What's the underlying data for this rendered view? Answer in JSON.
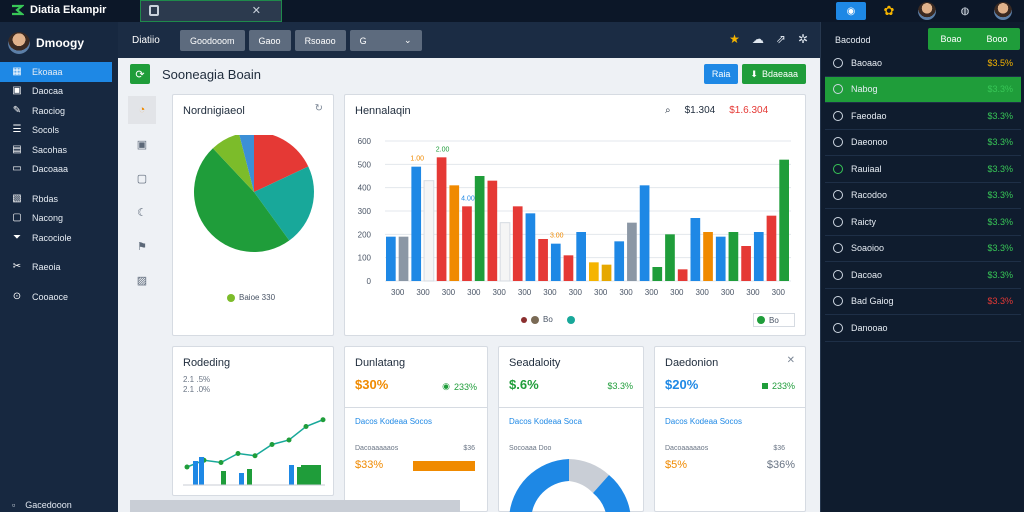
{
  "app": {
    "title": "Diatia Ekampir"
  },
  "window": {
    "tab_label": ""
  },
  "topbar": {
    "icons": [
      "notification-icon",
      "gear-icon",
      "avatar",
      "globe-icon",
      "avatar"
    ]
  },
  "profile": {
    "name": "Dmoogy"
  },
  "sidebar": {
    "items": [
      {
        "label": "Ekoaaa",
        "icon": "grid-icon",
        "active": true
      },
      {
        "label": "Daocaa",
        "icon": "folder-icon"
      },
      {
        "label": "Raociog",
        "icon": "wrench-icon"
      },
      {
        "label": "Socols",
        "icon": "list-icon"
      },
      {
        "label": "Sacohas",
        "icon": "table-icon"
      },
      {
        "label": "Dacoaaa",
        "icon": "monitor-icon"
      },
      {
        "label": "Rbdas",
        "icon": "tag-icon"
      },
      {
        "label": "Nacong",
        "icon": "note-icon"
      },
      {
        "label": "Racociole",
        "icon": "filter-icon"
      },
      {
        "label": "Raeoia",
        "icon": "tools-icon"
      },
      {
        "label": "Cooaoce",
        "icon": "settings-icon"
      }
    ],
    "footer": "Gacedooon"
  },
  "toolbar": {
    "title": "Diatiio",
    "tabs": [
      "Goodooom",
      "Gaoo",
      "Rsoaoo"
    ],
    "select_value": "G"
  },
  "page": {
    "title": "Sooneagia Boain",
    "btn_primary": "Raia",
    "btn_secondary": "Bdaeaaa"
  },
  "pie_card": {
    "title": "Nordnigiaeol",
    "legend": "Baioe 330"
  },
  "bar_card": {
    "title": "Hennalaqin",
    "summary": "$1.304",
    "summary_alt": "$1.6.304",
    "legend": [
      "Bo"
    ]
  },
  "chart_data": [
    {
      "type": "pie",
      "title": "Nordnigiaeol",
      "slices": [
        {
          "value": 18,
          "color": "#e53935"
        },
        {
          "value": 22,
          "color": "#18a89a"
        },
        {
          "value": 48,
          "color": "#1f9d3a"
        },
        {
          "value": 8,
          "color": "#7cbc2a"
        },
        {
          "value": 4,
          "color": "#3c8fd6"
        }
      ]
    },
    {
      "type": "bar",
      "title": "Hennalaqin",
      "yticks": [
        "0",
        "100",
        "200",
        "300",
        "400",
        "500",
        "600"
      ],
      "xlabels": [
        "300",
        "300",
        "300",
        "300",
        "300",
        "300",
        "300",
        "300",
        "300",
        "300",
        "300",
        "300",
        "300",
        "300",
        "300",
        "300"
      ],
      "ylim": [
        0,
        600
      ],
      "values": [
        [
          190,
          "#1e88e5"
        ],
        [
          190,
          "#8b97a5"
        ],
        [
          490,
          "#1e88e5"
        ],
        [
          430,
          "#f5f5f5"
        ],
        [
          530,
          "#e53935"
        ],
        [
          410,
          "#f08a00"
        ],
        [
          320,
          "#e53935"
        ],
        [
          450,
          "#1f9d3a"
        ],
        [
          430,
          "#e53935"
        ],
        [
          250,
          "#f5f5f5"
        ],
        [
          320,
          "#e53935"
        ],
        [
          290,
          "#1e88e5"
        ],
        [
          180,
          "#e53935"
        ],
        [
          160,
          "#1e88e5"
        ],
        [
          110,
          "#e53935"
        ],
        [
          210,
          "#1e88e5"
        ],
        [
          80,
          "#f5b400"
        ],
        [
          70,
          "#e6a800"
        ],
        [
          170,
          "#1e88e5"
        ],
        [
          250,
          "#8b97a5"
        ],
        [
          410,
          "#1e88e5"
        ],
        [
          60,
          "#1f9d3a"
        ],
        [
          200,
          "#1f9d3a"
        ],
        [
          50,
          "#e53935"
        ],
        [
          270,
          "#1e88e5"
        ],
        [
          210,
          "#f08a00"
        ],
        [
          190,
          "#1e88e5"
        ],
        [
          210,
          "#1f9d3a"
        ],
        [
          150,
          "#e53935"
        ],
        [
          210,
          "#1e88e5"
        ],
        [
          280,
          "#e53935"
        ],
        [
          520,
          "#1f9d3a"
        ]
      ],
      "annotations": [
        "1.00",
        "2.00",
        "4.00",
        "3.00"
      ]
    },
    {
      "type": "line",
      "title": "Rodeding",
      "values": [
        40,
        55,
        50,
        70,
        65,
        90,
        100,
        130,
        145
      ],
      "bars": [
        [
          24,
          "#1e88e5"
        ],
        [
          28,
          "#1e88e5"
        ],
        [
          14,
          "#1f9d3a"
        ],
        [
          12,
          "#1e88e5"
        ],
        [
          16,
          "#1f9d3a"
        ],
        [
          20,
          "#1e88e5"
        ],
        [
          18,
          "#1f9d3a"
        ]
      ]
    }
  ],
  "kpis": [
    {
      "title": "Rodeding",
      "sub1": "2.1 .5%",
      "sub2": "2.1 .0%"
    },
    {
      "title": "Dunlatang",
      "value": "$30%",
      "delta": "233%",
      "subtitle": "Dacos Kodeaa Socos",
      "row_left": "Dacoaaaaaos",
      "row_right": "$36",
      "big": "$33%",
      "big_right": ""
    },
    {
      "title": "Seadaloity",
      "value": "$.6%",
      "delta": "$3.3%",
      "subtitle": "Dacos Kodeaa Soca",
      "row_left": "Socoaaa Doo",
      "row_right": ""
    },
    {
      "title": "Daedonion",
      "value": "$20%",
      "delta": "233%",
      "subtitle": "Dacos Kodeaa Socos",
      "row_left": "Dacoaaaaaos",
      "row_right": "$36",
      "big": "$5%",
      "big_right": "$36%"
    }
  ],
  "rpanel": {
    "head": "Bacodod",
    "btn": "Boao",
    "btn_alt": "Booo",
    "items": [
      {
        "name": "Baoaao",
        "val": "$3.5%",
        "cls": "yel"
      },
      {
        "name": "Nabog",
        "val": "$3.3%",
        "active": true
      },
      {
        "name": "Faeodao",
        "val": "$3.3%"
      },
      {
        "name": "Daeonoo",
        "val": "$3.3%"
      },
      {
        "name": "Rauiaal",
        "val": "$3.3%"
      },
      {
        "name": "Racodoo",
        "val": "$3.3%"
      },
      {
        "name": "Raicty",
        "val": "$3.3%"
      },
      {
        "name": "Soaoioo",
        "val": "$3.3%"
      },
      {
        "name": "Dacoao",
        "val": "$3.3%"
      },
      {
        "name": "Bad Gaiog",
        "val": "$3.3%",
        "cls": "red"
      },
      {
        "name": "Danooao",
        "val": ""
      }
    ]
  }
}
